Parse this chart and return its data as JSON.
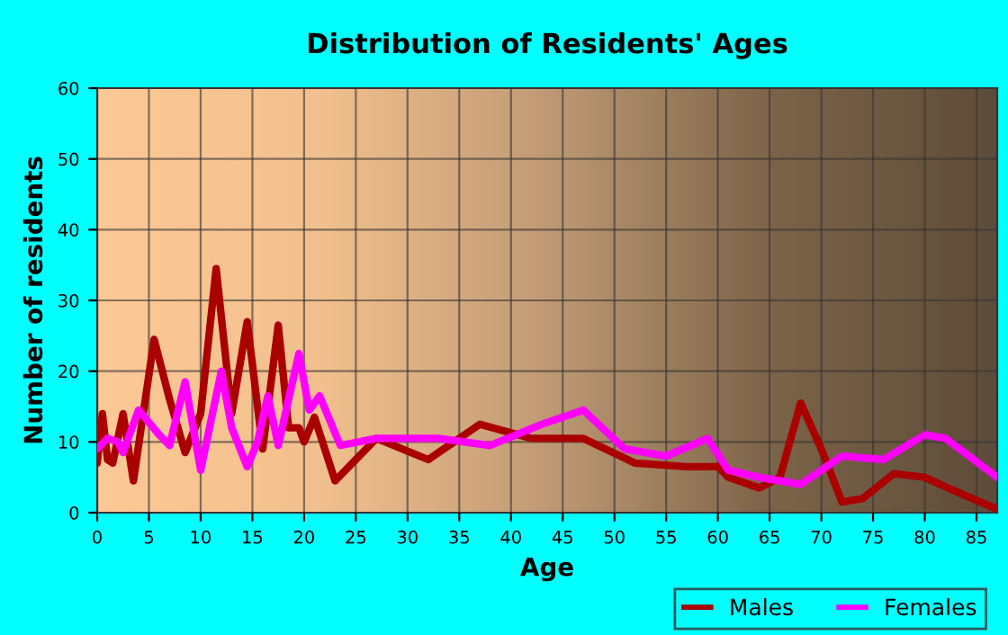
{
  "chart_data": {
    "type": "line",
    "title": "Distribution of Residents' Ages",
    "xlabel": "Age",
    "ylabel": "Number of residents",
    "xlim": [
      0,
      87
    ],
    "ylim": [
      0,
      60
    ],
    "xticks": [
      0,
      5,
      10,
      15,
      20,
      25,
      30,
      35,
      40,
      45,
      50,
      55,
      60,
      65,
      70,
      75,
      80,
      85
    ],
    "yticks": [
      0,
      10,
      20,
      30,
      40,
      50,
      60
    ],
    "grid": true,
    "legend": "bottom right",
    "marker": "none",
    "line_style": "solid",
    "series": [
      {
        "name": "Males",
        "color": "#aa0000",
        "x": [
          0,
          0.5,
          1,
          1.5,
          2.5,
          3.5,
          5.5,
          7,
          8.5,
          10,
          11.5,
          13,
          14.5,
          16,
          17.5,
          18.5,
          19.5,
          20,
          21,
          23,
          27,
          32,
          37,
          42,
          47,
          52,
          57,
          60,
          61,
          64,
          66,
          68,
          70,
          72,
          74,
          77,
          80,
          83,
          87
        ],
        "values": [
          7,
          14,
          7.5,
          7,
          14,
          4.5,
          24.5,
          16,
          8.5,
          14,
          34.5,
          14,
          27,
          9,
          26.5,
          12,
          12,
          10,
          13.5,
          4.5,
          10.5,
          7.5,
          12.5,
          10.5,
          10.5,
          7,
          6.5,
          6.5,
          5,
          3.5,
          5,
          15.5,
          9,
          1.5,
          2,
          5.5,
          5,
          3,
          0.5
        ]
      },
      {
        "name": "Females",
        "color": "#ff00ff",
        "x": [
          0,
          1,
          2,
          2.5,
          4,
          6,
          7,
          8.5,
          10,
          12,
          13,
          14.5,
          15.5,
          16.5,
          17.5,
          19.5,
          20.5,
          21.5,
          23.5,
          27,
          33,
          38,
          43,
          47,
          51,
          55,
          59,
          61,
          64,
          68,
          72,
          76,
          80,
          82,
          87
        ],
        "values": [
          9,
          10.5,
          10,
          8.5,
          14.5,
          11,
          9.5,
          18.5,
          6,
          20,
          12,
          6.5,
          10,
          16.5,
          9.5,
          22.5,
          14.5,
          16.5,
          9.5,
          10.5,
          10.5,
          9.5,
          12.5,
          14.5,
          9,
          8,
          10.5,
          6,
          5,
          4,
          8,
          7.5,
          11,
          10.5,
          5
        ]
      }
    ]
  }
}
